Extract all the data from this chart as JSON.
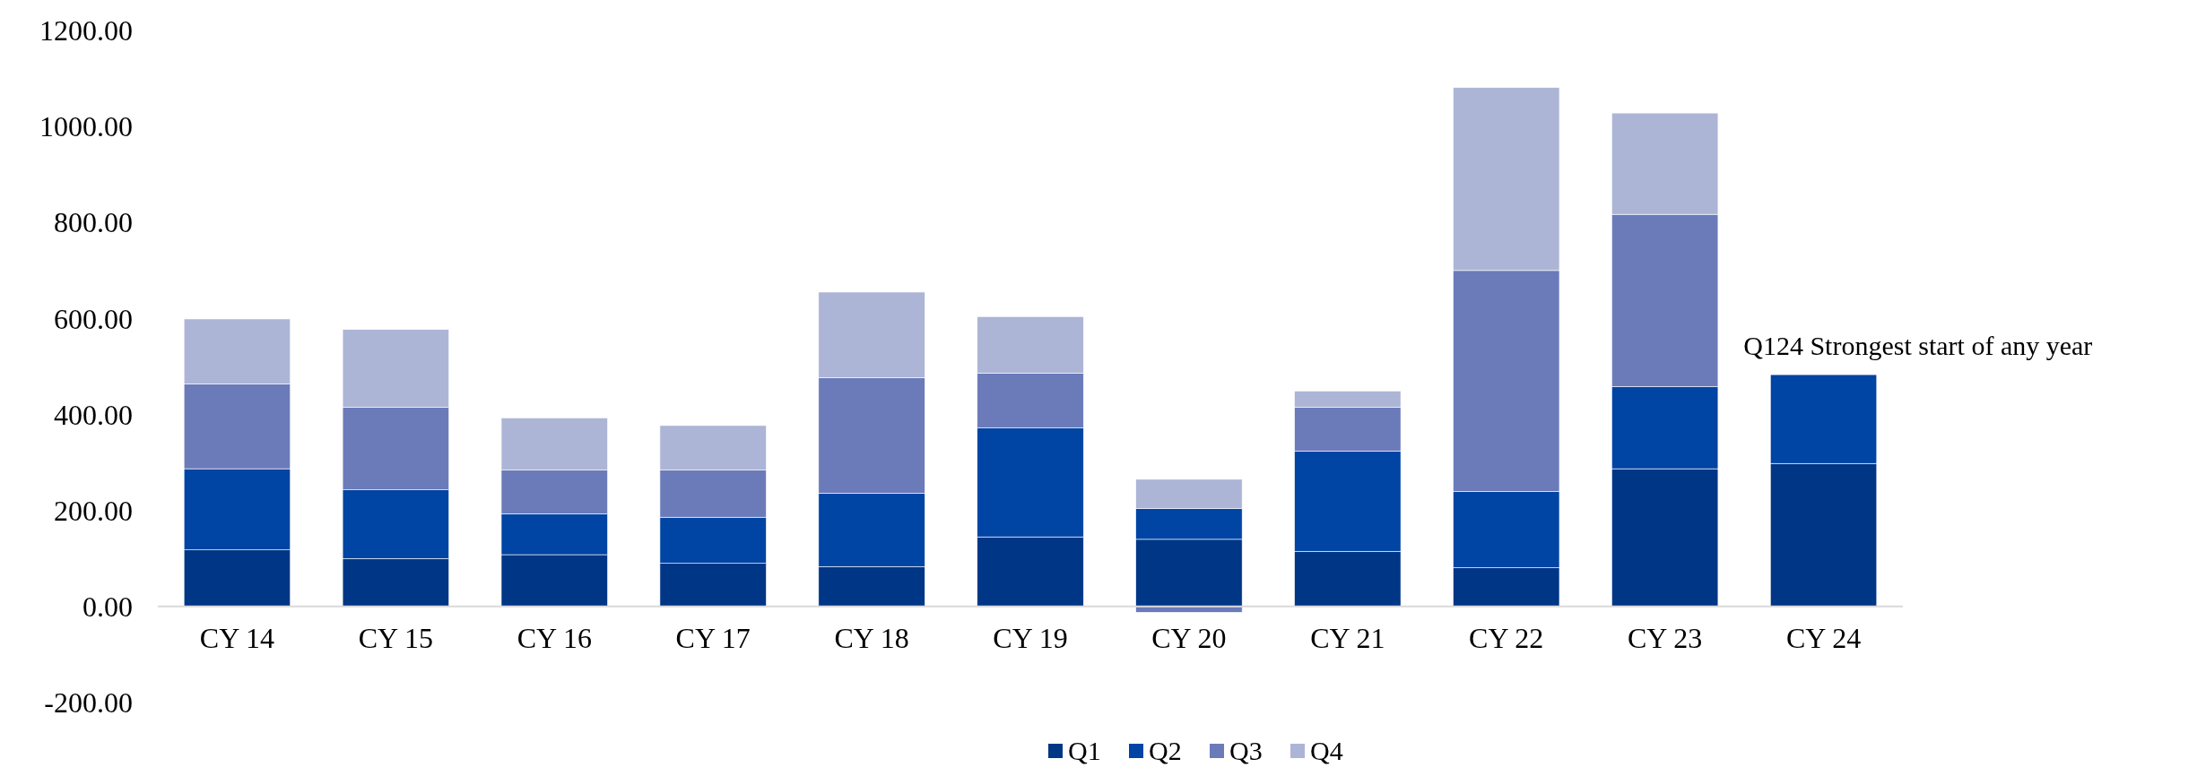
{
  "chart_data": {
    "type": "bar",
    "stacked": true,
    "categories": [
      "CY 14",
      "CY 15",
      "CY 16",
      "CY 17",
      "CY 18",
      "CY 19",
      "CY 20",
      "CY 21",
      "CY 22",
      "CY 23",
      "CY 24"
    ],
    "series": [
      {
        "name": "Q1",
        "color": "#003686",
        "values": [
          118,
          100,
          108,
          90,
          83,
          145,
          140,
          115,
          81,
          287,
          298
        ]
      },
      {
        "name": "Q2",
        "color": "#0044a4",
        "values": [
          169,
          143,
          85,
          96,
          153,
          227,
          64,
          209,
          159,
          171,
          185
        ]
      },
      {
        "name": "Q3",
        "color": "#6b7bba",
        "values": [
          177,
          172,
          91,
          98,
          241,
          114,
          -12,
          91,
          460,
          359,
          null
        ]
      },
      {
        "name": "Q4",
        "color": "#adb5d6",
        "values": [
          135,
          162,
          109,
          93,
          178,
          118,
          61,
          34,
          381,
          211,
          null
        ]
      }
    ],
    "ylim": [
      -200,
      1200
    ],
    "yticks": [
      {
        "value": -200,
        "label": "-200.00"
      },
      {
        "value": 0,
        "label": "0.00"
      },
      {
        "value": 200,
        "label": "200.00"
      },
      {
        "value": 400,
        "label": "400.00"
      },
      {
        "value": 600,
        "label": "600.00"
      },
      {
        "value": 800,
        "label": "800.00"
      },
      {
        "value": 1000,
        "label": "1000.00"
      },
      {
        "value": 1200,
        "label": "1200.00"
      }
    ],
    "annotations": [
      {
        "text": "Q124 Strongest start of any year",
        "x": "CY 24",
        "y": 483
      }
    ],
    "legend": "bottom",
    "grid": false
  }
}
